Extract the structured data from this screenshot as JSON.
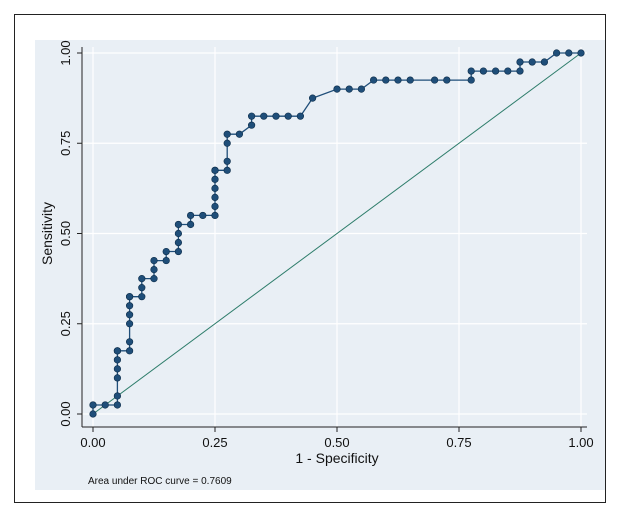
{
  "chart_data": {
    "type": "line",
    "xlabel": "1 - Specificity",
    "ylabel": "Sensitivity",
    "xlim": [
      0,
      1
    ],
    "ylim": [
      0,
      1
    ],
    "xticks": [
      "0.00",
      "0.25",
      "0.50",
      "0.75",
      "1.00"
    ],
    "yticks": [
      "0.00",
      "0.25",
      "0.50",
      "0.75",
      "1.00"
    ],
    "grid": true,
    "annotation": "Area under ROC curve = 0.7609",
    "colors": {
      "curve": "#1f4e79",
      "marker": "#1f4e79",
      "reference": "#2e7d6b",
      "panel": "#e9eff5",
      "grid": "#ffffff"
    },
    "series": [
      {
        "values_x": [
          0,
          0,
          0.025,
          0.05,
          0.05,
          0.05,
          0.05,
          0.05,
          0.05,
          0.05,
          0.075,
          0.075,
          0.075,
          0.075,
          0.075,
          0.075,
          0.075,
          0.1,
          0.1,
          0.1,
          0.125,
          0.125,
          0.125,
          0.15,
          0.15,
          0.175,
          0.175,
          0.175,
          0.175,
          0.2,
          0.2,
          0.225,
          0.25,
          0.25,
          0.25,
          0.25,
          0.25,
          0.25,
          0.25,
          0.275,
          0.275,
          0.275,
          0.275,
          0.3,
          0.325,
          0.325,
          0.35,
          0.375,
          0.4,
          0.425,
          0.45,
          0.5,
          0.525,
          0.55,
          0.575,
          0.6,
          0.625,
          0.65,
          0.7,
          0.725,
          0.775,
          0.775,
          0.8,
          0.825,
          0.85,
          0.875,
          0.875,
          0.9,
          0.925,
          0.95,
          0.975,
          1
        ],
        "values_y": [
          0,
          0.025,
          0.025,
          0.025,
          0.05,
          0.1,
          0.125,
          0.15,
          0.175,
          0.175,
          0.175,
          0.2,
          0.25,
          0.275,
          0.3,
          0.325,
          0.325,
          0.325,
          0.35,
          0.375,
          0.375,
          0.4,
          0.425,
          0.425,
          0.45,
          0.45,
          0.475,
          0.5,
          0.525,
          0.525,
          0.55,
          0.55,
          0.55,
          0.575,
          0.6,
          0.625,
          0.65,
          0.675,
          0.675,
          0.675,
          0.7,
          0.75,
          0.775,
          0.775,
          0.8,
          0.825,
          0.825,
          0.825,
          0.825,
          0.825,
          0.875,
          0.9,
          0.9,
          0.9,
          0.925,
          0.925,
          0.925,
          0.925,
          0.925,
          0.925,
          0.925,
          0.95,
          0.95,
          0.95,
          0.95,
          0.95,
          0.975,
          0.975,
          0.975,
          1,
          1,
          1
        ]
      }
    ]
  }
}
